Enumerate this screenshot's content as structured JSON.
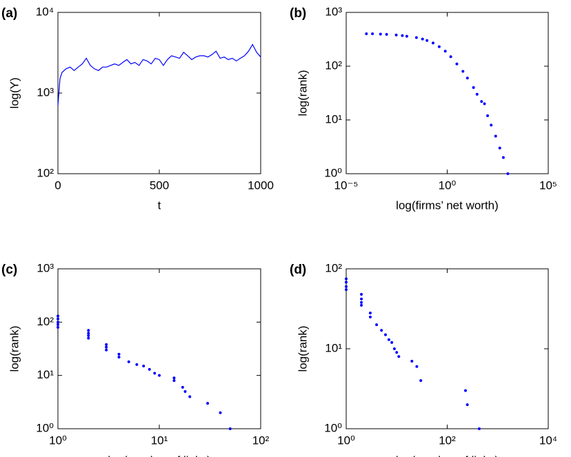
{
  "chart_data": [
    {
      "type": "line",
      "title": "(a)",
      "xlabel": "t",
      "ylabel": "log(Y)",
      "color": "#0000ff",
      "ylog": true,
      "x": [
        0,
        10,
        20,
        40,
        60,
        80,
        100,
        120,
        140,
        160,
        180,
        200,
        220,
        240,
        260,
        280,
        300,
        320,
        340,
        360,
        380,
        400,
        420,
        440,
        460,
        480,
        500,
        520,
        540,
        560,
        580,
        600,
        620,
        640,
        660,
        680,
        700,
        720,
        740,
        760,
        780,
        800,
        820,
        840,
        860,
        880,
        900,
        920,
        940,
        960,
        980,
        1000
      ],
      "values": [
        700,
        1500,
        1800,
        2000,
        2100,
        1900,
        2100,
        2300,
        2700,
        2200,
        2000,
        1900,
        2100,
        2100,
        2200,
        2300,
        2200,
        2400,
        2600,
        2300,
        2400,
        2200,
        2600,
        2500,
        2300,
        2700,
        2600,
        2200,
        2600,
        2900,
        2800,
        2700,
        3200,
        2900,
        2600,
        2800,
        2900,
        2900,
        2800,
        3000,
        3300,
        2700,
        2800,
        2600,
        2700,
        2500,
        2700,
        2900,
        3300,
        4000,
        3200,
        2800
      ],
      "xlim": [
        0,
        1000
      ],
      "xticks": [
        0,
        500,
        1000
      ],
      "ylim": [
        100,
        10000
      ],
      "yticks": [
        {
          "value": 100,
          "label": "10²"
        },
        {
          "value": 1000,
          "label": "10³"
        },
        {
          "value": 10000,
          "label": "10⁴"
        }
      ]
    },
    {
      "type": "scatter",
      "title": "(b)",
      "xlabel": "log(firms’ net worth)",
      "ylabel": "log(rank)",
      "color": "#0000ff",
      "xlog": true,
      "ylog": true,
      "x": [
        0.0001,
        0.0002,
        0.0005,
        0.001,
        0.003,
        0.006,
        0.01,
        0.03,
        0.06,
        0.1,
        0.2,
        0.4,
        0.8,
        1.5,
        3,
        6,
        10,
        20,
        30,
        50,
        70,
        100,
        150,
        250,
        400,
        600,
        1000
      ],
      "values": [
        400,
        400,
        395,
        390,
        380,
        370,
        360,
        340,
        320,
        300,
        270,
        230,
        190,
        150,
        110,
        80,
        60,
        40,
        30,
        22,
        20,
        12,
        8,
        5,
        3,
        2,
        1
      ],
      "xlim": [
        1e-05,
        100000
      ],
      "xticks": [
        {
          "value": 1e-05,
          "label": "10⁻⁵"
        },
        {
          "value": 1,
          "label": "10⁰"
        },
        {
          "value": 100000,
          "label": "10⁵"
        }
      ],
      "ylim": [
        1,
        1000
      ],
      "yticks": [
        {
          "value": 1,
          "label": "10⁰"
        },
        {
          "value": 10,
          "label": "10¹"
        },
        {
          "value": 100,
          "label": "10²"
        },
        {
          "value": 1000,
          "label": "10³"
        }
      ]
    },
    {
      "type": "scatter",
      "title": "(c)",
      "xlabel": "log(number of links)",
      "ylabel": "log(rank)",
      "color": "#0000ff",
      "xlog": true,
      "ylog": true,
      "x": [
        1,
        1,
        1,
        1,
        1,
        2,
        2,
        2,
        2,
        3,
        3,
        3,
        4,
        4,
        5,
        6,
        7,
        8,
        9,
        10,
        14,
        14,
        17,
        18,
        20,
        30,
        40,
        50
      ],
      "values": [
        130,
        115,
        100,
        90,
        80,
        70,
        62,
        56,
        50,
        38,
        34,
        30,
        25,
        22,
        18,
        16,
        15,
        13,
        11,
        10,
        9,
        8,
        6,
        5,
        4,
        3,
        2,
        1
      ],
      "xlim": [
        1,
        100
      ],
      "xticks": [
        {
          "value": 1,
          "label": "10⁰"
        },
        {
          "value": 10,
          "label": "10¹"
        },
        {
          "value": 100,
          "label": "10²"
        }
      ],
      "ylim": [
        1,
        1000
      ],
      "yticks": [
        {
          "value": 1,
          "label": "10⁰"
        },
        {
          "value": 10,
          "label": "10¹"
        },
        {
          "value": 100,
          "label": "10²"
        },
        {
          "value": 1000,
          "label": "10³"
        }
      ]
    },
    {
      "type": "scatter",
      "title": "(d)",
      "xlabel": "log(number of links)",
      "ylabel": "log(rank)",
      "color": "#0000ff",
      "xlog": true,
      "ylog": true,
      "x": [
        1,
        1,
        1,
        1,
        2,
        2,
        2,
        2,
        3,
        3,
        4,
        5,
        6,
        7,
        8,
        9,
        10,
        11,
        20,
        25,
        30,
        230,
        250,
        430
      ],
      "values": [
        75,
        68,
        60,
        55,
        48,
        42,
        38,
        35,
        28,
        25,
        20,
        17,
        15,
        13,
        12,
        10,
        9,
        8,
        7,
        6,
        4,
        3,
        2,
        1
      ],
      "xlim": [
        1,
        10000
      ],
      "xticks": [
        {
          "value": 1,
          "label": "10⁰"
        },
        {
          "value": 100,
          "label": "10²"
        },
        {
          "value": 10000,
          "label": "10⁴"
        }
      ],
      "ylim": [
        1,
        100
      ],
      "yticks": [
        {
          "value": 1,
          "label": "10⁰"
        },
        {
          "value": 10,
          "label": "10¹"
        },
        {
          "value": 100,
          "label": "10²"
        }
      ]
    }
  ]
}
